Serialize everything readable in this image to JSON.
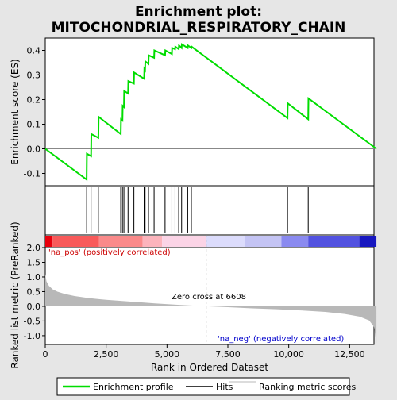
{
  "chart_data": {
    "type": "line",
    "title": "Enrichment plot: MITOCHONDRIAL_RESPIRATORY_CHAIN",
    "title_lines": [
      "Enrichment plot:",
      "MITOCHONDRIAL_RESPIRATORY_CHAIN"
    ],
    "x_range": [
      0,
      13500
    ],
    "xlabel": "Rank in Ordered Dataset",
    "x_ticks": [
      0,
      2500,
      5000,
      7500,
      10000,
      12500
    ],
    "x_tick_labels": [
      "0",
      "2,500",
      "5,000",
      "7,500",
      "10,000",
      "12,500"
    ],
    "es_panel": {
      "ylabel": "Enrichment score (ES)",
      "ylim": [
        -0.15,
        0.45
      ],
      "y_ticks": [
        -0.1,
        0.0,
        0.1,
        0.2,
        0.3,
        0.4
      ],
      "y_tick_labels": [
        "-0.1",
        "0.0",
        "0.1",
        "0.2",
        "0.3",
        "0.4"
      ],
      "line_color": "#00dd00",
      "points": [
        [
          0,
          0.0
        ],
        [
          1700,
          -0.125
        ],
        [
          1710,
          -0.02
        ],
        [
          1880,
          -0.03
        ],
        [
          1890,
          0.06
        ],
        [
          2180,
          0.045
        ],
        [
          2190,
          0.13
        ],
        [
          3100,
          0.06
        ],
        [
          3110,
          0.12
        ],
        [
          3170,
          0.115
        ],
        [
          3180,
          0.175
        ],
        [
          3230,
          0.17
        ],
        [
          3240,
          0.235
        ],
        [
          3400,
          0.225
        ],
        [
          3410,
          0.275
        ],
        [
          3640,
          0.265
        ],
        [
          3650,
          0.31
        ],
        [
          4060,
          0.285
        ],
        [
          4070,
          0.325
        ],
        [
          4100,
          0.32
        ],
        [
          4110,
          0.355
        ],
        [
          4240,
          0.345
        ],
        [
          4250,
          0.38
        ],
        [
          4470,
          0.37
        ],
        [
          4480,
          0.4
        ],
        [
          4920,
          0.38
        ],
        [
          4930,
          0.4
        ],
        [
          5200,
          0.385
        ],
        [
          5210,
          0.41
        ],
        [
          5330,
          0.405
        ],
        [
          5340,
          0.415
        ],
        [
          5480,
          0.405
        ],
        [
          5490,
          0.42
        ],
        [
          5600,
          0.41
        ],
        [
          5610,
          0.425
        ],
        [
          5850,
          0.41
        ],
        [
          5860,
          0.42
        ],
        [
          6000,
          0.41
        ],
        [
          6010,
          0.415
        ],
        [
          9950,
          0.125
        ],
        [
          9960,
          0.185
        ],
        [
          10800,
          0.12
        ],
        [
          10810,
          0.205
        ],
        [
          13600,
          0.0
        ]
      ]
    },
    "hits": [
      1700,
      1880,
      2180,
      3100,
      3170,
      3230,
      3400,
      3640,
      4060,
      4100,
      4240,
      4470,
      4920,
      5200,
      5330,
      5480,
      5600,
      5850,
      6000,
      9950,
      10800
    ],
    "color_bar": {
      "segments": [
        {
          "start": 0,
          "end": 300,
          "color": "#e8000c"
        },
        {
          "start": 300,
          "end": 2200,
          "color": "#f85a5a"
        },
        {
          "start": 2200,
          "end": 4000,
          "color": "#fa8a8a"
        },
        {
          "start": 4000,
          "end": 4800,
          "color": "#fcb4bc"
        },
        {
          "start": 4800,
          "end": 6600,
          "color": "#fbd4e6"
        },
        {
          "start": 6600,
          "end": 8200,
          "color": "#dcdcfc"
        },
        {
          "start": 8200,
          "end": 9700,
          "color": "#c4c4f4"
        },
        {
          "start": 9700,
          "end": 10800,
          "color": "#8a8af0"
        },
        {
          "start": 10800,
          "end": 12900,
          "color": "#5252e0"
        },
        {
          "start": 12900,
          "end": 13600,
          "color": "#1818c0"
        }
      ]
    },
    "metric_panel": {
      "ylabel": "Ranked list metric (PreRanked)",
      "ylim": [
        -1.3,
        2.0
      ],
      "y_ticks": [
        -1.0,
        -0.5,
        0.0,
        0.5,
        1.0,
        1.5,
        2.0
      ],
      "y_tick_labels": [
        "-1.0",
        "-0.5",
        "0.0",
        "0.5",
        "1.0",
        "1.5",
        "2.0"
      ],
      "fill_color": "#b8b8b8",
      "profile": [
        [
          0,
          1.1
        ],
        [
          50,
          0.85
        ],
        [
          150,
          0.7
        ],
        [
          300,
          0.58
        ],
        [
          500,
          0.5
        ],
        [
          800,
          0.42
        ],
        [
          1200,
          0.35
        ],
        [
          1800,
          0.28
        ],
        [
          2500,
          0.22
        ],
        [
          3500,
          0.16
        ],
        [
          4500,
          0.1
        ],
        [
          5500,
          0.05
        ],
        [
          6608,
          0.0
        ],
        [
          7500,
          -0.03
        ],
        [
          8500,
          -0.07
        ],
        [
          9500,
          -0.1
        ],
        [
          10500,
          -0.14
        ],
        [
          11500,
          -0.19
        ],
        [
          12300,
          -0.26
        ],
        [
          12900,
          -0.35
        ],
        [
          13300,
          -0.48
        ],
        [
          13500,
          -0.7
        ],
        [
          13600,
          -1.25
        ]
      ],
      "pos_label": "'na_pos' (positively correlated)",
      "neg_label": "'na_neg' (negatively correlated)",
      "pos_label_color": "#cc0000",
      "neg_label_color": "#0000cc",
      "zero_cross_label": "Zero cross at 6608",
      "zero_cross_x": 6608
    },
    "legend": {
      "placement": "bottom",
      "entries": [
        {
          "label": "Enrichment profile",
          "color": "#00dd00",
          "style": "line"
        },
        {
          "label": "Hits",
          "color": "#000000",
          "style": "line"
        },
        {
          "label": "Ranking metric scores",
          "color": "#b8b8b8",
          "style": "line"
        }
      ]
    }
  }
}
